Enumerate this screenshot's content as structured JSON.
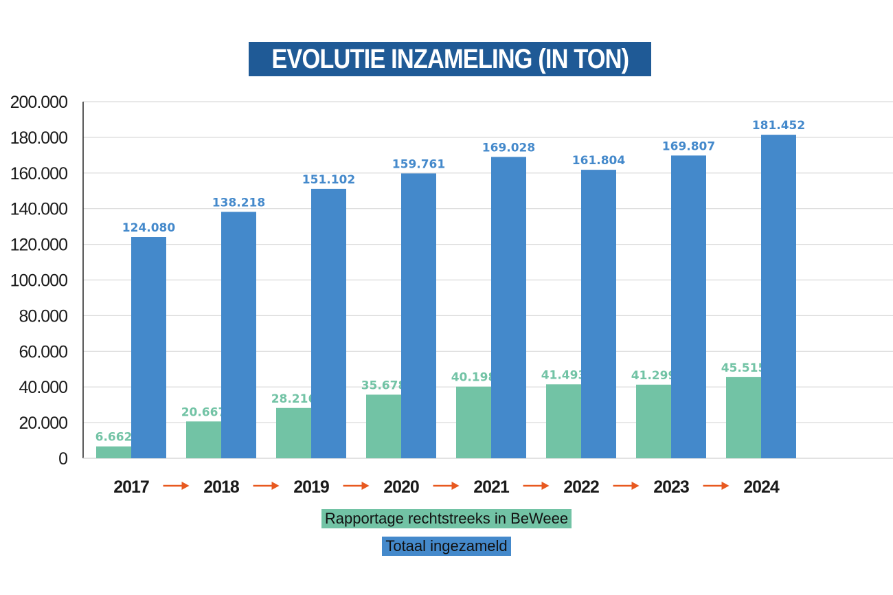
{
  "chart_data": {
    "type": "bar",
    "title": "EVOLUTIE INZAMELING (IN TON)",
    "xlabel": "",
    "ylabel": "",
    "ylim": [
      0,
      200000
    ],
    "yticks": [
      0,
      20000,
      40000,
      60000,
      80000,
      100000,
      120000,
      140000,
      160000,
      180000,
      200000
    ],
    "ytick_labels": [
      "0",
      "20.000",
      "40.000",
      "60.000",
      "80.000",
      "100.000",
      "120.000",
      "140.000",
      "160.000",
      "180.000",
      "200.000"
    ],
    "categories": [
      "2017",
      "2018",
      "2019",
      "2020",
      "2021",
      "2022",
      "2023",
      "2024"
    ],
    "category_separator": "arrow-right",
    "grid": true,
    "legend_placement": "bottom-center",
    "series": [
      {
        "name": "Rapportage rechtstreeks in BeWeee",
        "color": "#72c3a5",
        "values": [
          6662,
          20667,
          28216,
          35678,
          40198,
          41493,
          41299,
          45515
        ],
        "data_labels": [
          "6.662",
          "20.667",
          "28.216",
          "35.678",
          "40.198",
          "41.493",
          "41.299",
          "45.515"
        ]
      },
      {
        "name": "Totaal ingezameld",
        "color": "#4489cb",
        "values": [
          124080,
          138218,
          151102,
          159761,
          169028,
          161804,
          169807,
          181452
        ],
        "data_labels": [
          "124.080",
          "138.218",
          "151.102",
          "159.761",
          "169.028",
          "161.804",
          "169.807",
          "181.452"
        ]
      }
    ],
    "colors": {
      "title_bg": "#1f5a96",
      "arrow": "#e8591f",
      "grid": "#d9d9d9"
    }
  }
}
